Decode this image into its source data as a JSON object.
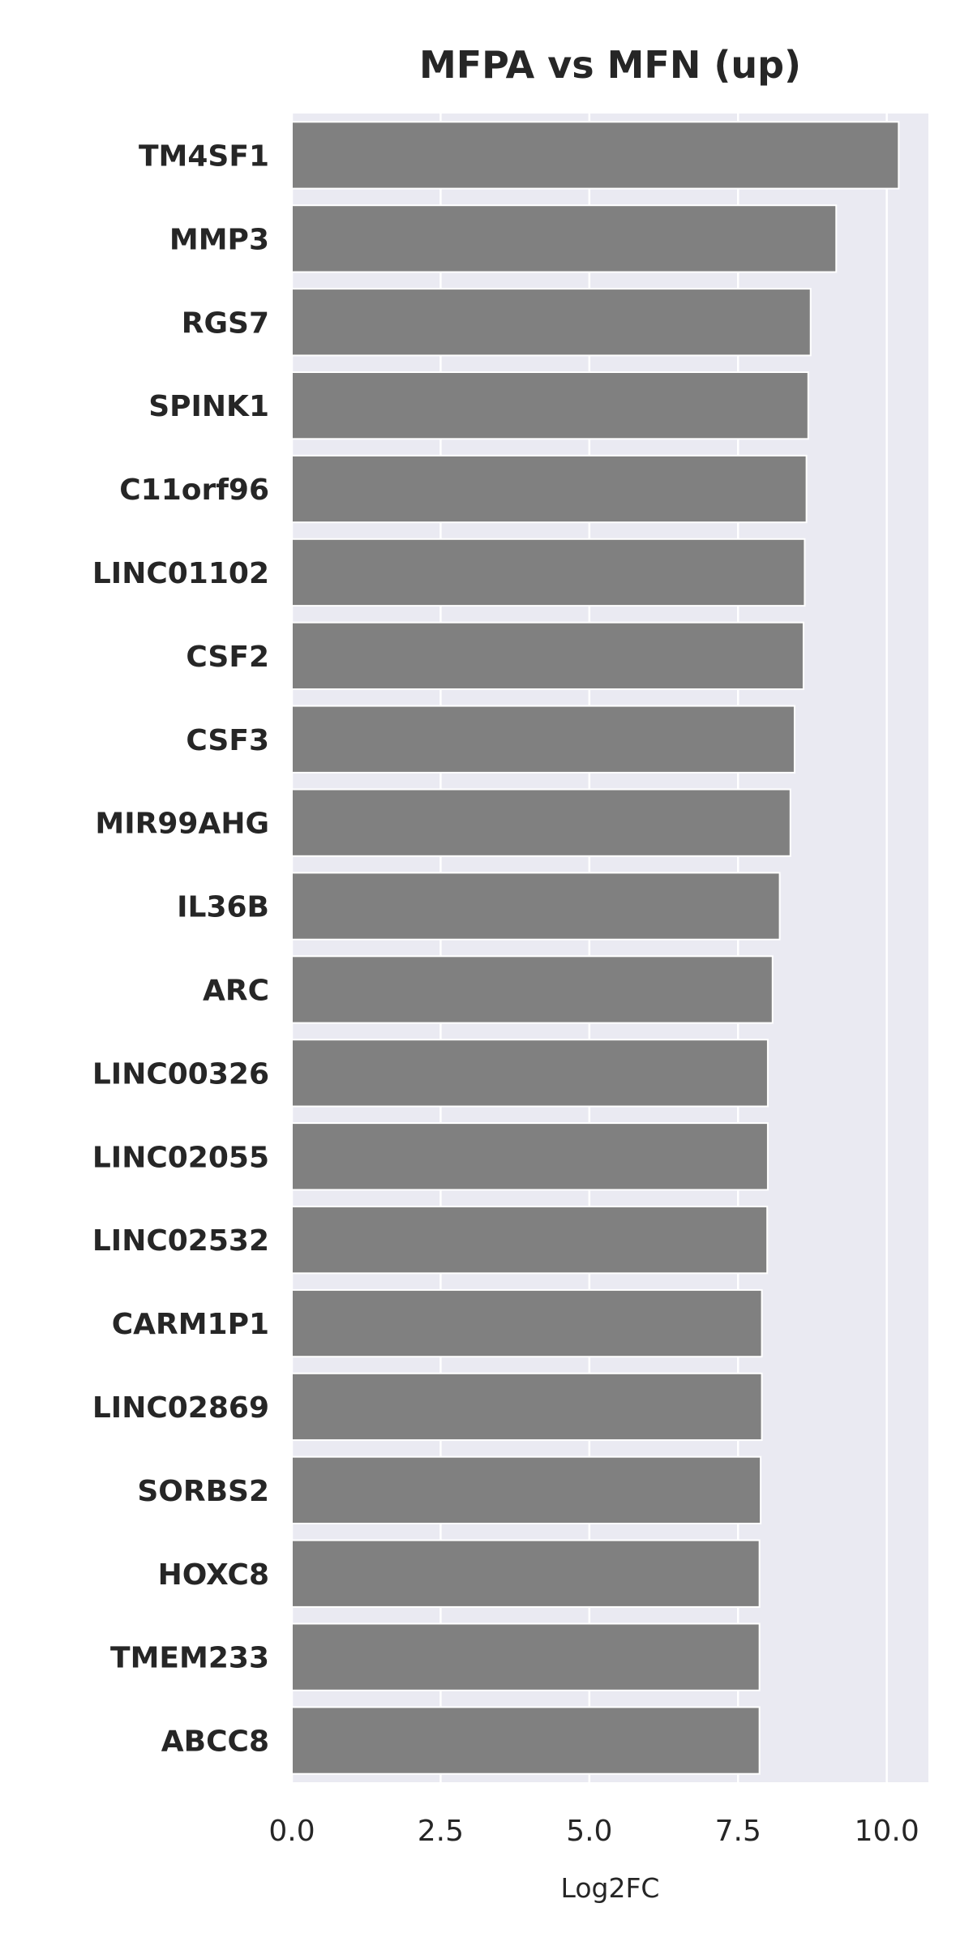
{
  "chart_data": {
    "type": "bar",
    "orientation": "horizontal",
    "title": "MFPA vs MFN (up)",
    "xlabel": "Log2FC",
    "ylabel": "",
    "xlim": [
      0,
      10.7
    ],
    "xticks": [
      "0.0",
      "2.5",
      "5.0",
      "7.5",
      "10.0"
    ],
    "grid": true,
    "colors": {
      "bar": "#808080",
      "plot_bg": "#eaeaf2",
      "grid": "#ffffff"
    },
    "categories": [
      "TM4SF1",
      "MMP3",
      "RGS7",
      "SPINK1",
      "C11orf96",
      "LINC01102",
      "CSF2",
      "CSF3",
      "MIR99AHG",
      "IL36B",
      "ARC",
      "LINC00326",
      "LINC02055",
      "LINC02532",
      "CARM1P1",
      "LINC02869",
      "SORBS2",
      "HOXC8",
      "TMEM233",
      "ABCC8"
    ],
    "values": [
      10.2,
      9.15,
      8.72,
      8.68,
      8.65,
      8.62,
      8.6,
      8.45,
      8.38,
      8.2,
      8.08,
      8.0,
      8.0,
      7.99,
      7.9,
      7.9,
      7.88,
      7.86,
      7.86,
      7.86
    ]
  }
}
